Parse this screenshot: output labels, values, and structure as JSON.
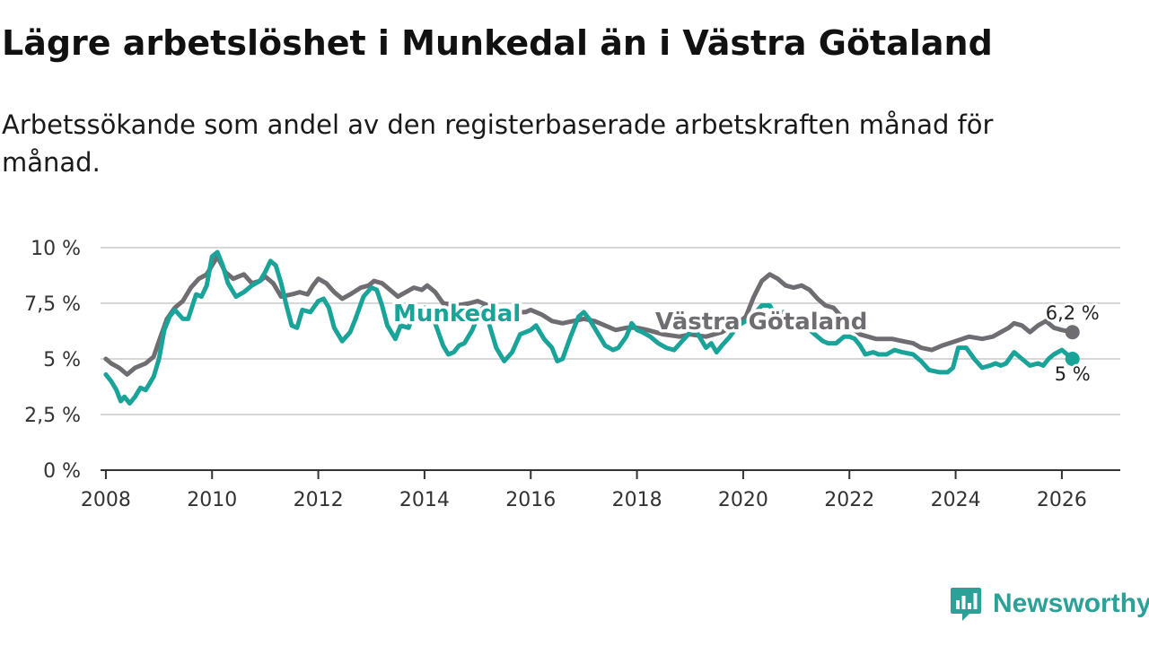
{
  "title": "Lägre arbetslöshet i Munkedal än i Västra Götaland",
  "subtitle": "Arbetssökande som andel av den registerbaserade arbetskraften månad för månad.",
  "brand": {
    "name": "Newsworthy",
    "color": "#2ba198",
    "icon": "newsworthy-logo-icon"
  },
  "chart_data": {
    "type": "line",
    "title": "Lägre arbetslöshet i Munkedal än i Västra Götaland",
    "xlabel": "",
    "ylabel": "",
    "xlim": [
      2007.9,
      2027.1
    ],
    "ylim": [
      0,
      10
    ],
    "grid": true,
    "y_ticks": [
      {
        "value": 0,
        "label": "0 %"
      },
      {
        "value": 2.5,
        "label": "2,5 %"
      },
      {
        "value": 5,
        "label": "5 %"
      },
      {
        "value": 7.5,
        "label": "7,5 %"
      },
      {
        "value": 10,
        "label": "10 %"
      }
    ],
    "x_ticks": [
      {
        "value": 2008,
        "label": "2008"
      },
      {
        "value": 2010,
        "label": "2010"
      },
      {
        "value": 2012,
        "label": "2012"
      },
      {
        "value": 2014,
        "label": "2014"
      },
      {
        "value": 2016,
        "label": "2016"
      },
      {
        "value": 2018,
        "label": "2018"
      },
      {
        "value": 2020,
        "label": "2020"
      },
      {
        "value": 2022,
        "label": "2022"
      },
      {
        "value": 2024,
        "label": "2024"
      },
      {
        "value": 2026,
        "label": "2026"
      }
    ],
    "series": [
      {
        "name": "Västra Götaland",
        "label": "Västra Götaland",
        "color": "#6f6d72",
        "end_label": "6,2 %",
        "points": [
          [
            2008.0,
            5.0
          ],
          [
            2008.1,
            4.8
          ],
          [
            2008.25,
            4.6
          ],
          [
            2008.4,
            4.3
          ],
          [
            2008.55,
            4.6
          ],
          [
            2008.75,
            4.8
          ],
          [
            2008.9,
            5.1
          ],
          [
            2009.0,
            5.8
          ],
          [
            2009.15,
            6.8
          ],
          [
            2009.3,
            7.3
          ],
          [
            2009.45,
            7.6
          ],
          [
            2009.6,
            8.2
          ],
          [
            2009.75,
            8.6
          ],
          [
            2009.9,
            8.8
          ],
          [
            2010.0,
            9.2
          ],
          [
            2010.1,
            9.6
          ],
          [
            2010.25,
            8.9
          ],
          [
            2010.4,
            8.6
          ],
          [
            2010.5,
            8.7
          ],
          [
            2010.6,
            8.8
          ],
          [
            2010.75,
            8.4
          ],
          [
            2010.9,
            8.5
          ],
          [
            2011.0,
            8.7
          ],
          [
            2011.15,
            8.4
          ],
          [
            2011.3,
            7.8
          ],
          [
            2011.5,
            7.9
          ],
          [
            2011.65,
            8.0
          ],
          [
            2011.8,
            7.9
          ],
          [
            2011.9,
            8.3
          ],
          [
            2012.0,
            8.6
          ],
          [
            2012.15,
            8.4
          ],
          [
            2012.3,
            8.0
          ],
          [
            2012.45,
            7.7
          ],
          [
            2012.6,
            7.9
          ],
          [
            2012.8,
            8.2
          ],
          [
            2012.95,
            8.3
          ],
          [
            2013.05,
            8.5
          ],
          [
            2013.2,
            8.4
          ],
          [
            2013.35,
            8.1
          ],
          [
            2013.5,
            7.8
          ],
          [
            2013.65,
            8.0
          ],
          [
            2013.8,
            8.2
          ],
          [
            2013.95,
            8.1
          ],
          [
            2014.05,
            8.3
          ],
          [
            2014.2,
            8.0
          ],
          [
            2014.35,
            7.5
          ],
          [
            2014.6,
            7.4
          ],
          [
            2014.85,
            7.5
          ],
          [
            2015.0,
            7.6
          ],
          [
            2015.2,
            7.4
          ],
          [
            2015.5,
            7.0
          ],
          [
            2015.7,
            7.1
          ],
          [
            2015.9,
            7.1
          ],
          [
            2016.0,
            7.2
          ],
          [
            2016.2,
            7.0
          ],
          [
            2016.4,
            6.7
          ],
          [
            2016.6,
            6.6
          ],
          [
            2016.8,
            6.7
          ],
          [
            2017.0,
            6.8
          ],
          [
            2017.2,
            6.7
          ],
          [
            2017.4,
            6.5
          ],
          [
            2017.6,
            6.3
          ],
          [
            2017.8,
            6.4
          ],
          [
            2018.0,
            6.4
          ],
          [
            2018.2,
            6.3
          ],
          [
            2018.5,
            6.1
          ],
          [
            2018.8,
            6.0
          ],
          [
            2019.0,
            6.1
          ],
          [
            2019.3,
            6.0
          ],
          [
            2019.6,
            6.2
          ],
          [
            2019.9,
            6.6
          ],
          [
            2020.05,
            6.9
          ],
          [
            2020.2,
            7.8
          ],
          [
            2020.35,
            8.5
          ],
          [
            2020.5,
            8.8
          ],
          [
            2020.65,
            8.6
          ],
          [
            2020.8,
            8.3
          ],
          [
            2020.95,
            8.2
          ],
          [
            2021.1,
            8.3
          ],
          [
            2021.25,
            8.1
          ],
          [
            2021.4,
            7.7
          ],
          [
            2021.55,
            7.4
          ],
          [
            2021.7,
            7.3
          ],
          [
            2021.85,
            6.9
          ],
          [
            2022.0,
            6.5
          ],
          [
            2022.2,
            6.1
          ],
          [
            2022.5,
            5.9
          ],
          [
            2022.8,
            5.9
          ],
          [
            2023.0,
            5.8
          ],
          [
            2023.2,
            5.7
          ],
          [
            2023.35,
            5.5
          ],
          [
            2023.55,
            5.4
          ],
          [
            2023.75,
            5.6
          ],
          [
            2024.0,
            5.8
          ],
          [
            2024.25,
            6.0
          ],
          [
            2024.5,
            5.9
          ],
          [
            2024.7,
            6.0
          ],
          [
            2024.85,
            6.2
          ],
          [
            2025.0,
            6.4
          ],
          [
            2025.1,
            6.6
          ],
          [
            2025.25,
            6.5
          ],
          [
            2025.4,
            6.2
          ],
          [
            2025.55,
            6.5
          ],
          [
            2025.7,
            6.7
          ],
          [
            2025.85,
            6.4
          ],
          [
            2026.0,
            6.3
          ],
          [
            2026.2,
            6.2
          ]
        ]
      },
      {
        "name": "Munkedal",
        "label": "Munkedal",
        "color": "#1aa399",
        "end_label": "5 %",
        "points": [
          [
            2008.0,
            4.3
          ],
          [
            2008.1,
            4.0
          ],
          [
            2008.2,
            3.6
          ],
          [
            2008.28,
            3.1
          ],
          [
            2008.35,
            3.3
          ],
          [
            2008.45,
            3.0
          ],
          [
            2008.55,
            3.3
          ],
          [
            2008.65,
            3.7
          ],
          [
            2008.75,
            3.6
          ],
          [
            2008.9,
            4.2
          ],
          [
            2009.0,
            5.0
          ],
          [
            2009.1,
            6.3
          ],
          [
            2009.2,
            6.9
          ],
          [
            2009.3,
            7.2
          ],
          [
            2009.45,
            6.8
          ],
          [
            2009.55,
            6.8
          ],
          [
            2009.7,
            7.9
          ],
          [
            2009.8,
            7.8
          ],
          [
            2009.9,
            8.3
          ],
          [
            2010.0,
            9.6
          ],
          [
            2010.1,
            9.8
          ],
          [
            2010.2,
            9.2
          ],
          [
            2010.3,
            8.4
          ],
          [
            2010.45,
            7.8
          ],
          [
            2010.6,
            8.0
          ],
          [
            2010.75,
            8.3
          ],
          [
            2010.9,
            8.5
          ],
          [
            2011.0,
            8.9
          ],
          [
            2011.1,
            9.4
          ],
          [
            2011.2,
            9.2
          ],
          [
            2011.3,
            8.4
          ],
          [
            2011.4,
            7.4
          ],
          [
            2011.5,
            6.5
          ],
          [
            2011.6,
            6.4
          ],
          [
            2011.7,
            7.2
          ],
          [
            2011.85,
            7.1
          ],
          [
            2012.0,
            7.6
          ],
          [
            2012.1,
            7.7
          ],
          [
            2012.2,
            7.3
          ],
          [
            2012.3,
            6.4
          ],
          [
            2012.45,
            5.8
          ],
          [
            2012.6,
            6.2
          ],
          [
            2012.7,
            6.8
          ],
          [
            2012.85,
            7.8
          ],
          [
            2013.0,
            8.2
          ],
          [
            2013.1,
            8.1
          ],
          [
            2013.2,
            7.4
          ],
          [
            2013.3,
            6.5
          ],
          [
            2013.45,
            5.9
          ],
          [
            2013.55,
            6.5
          ],
          [
            2013.7,
            6.4
          ],
          [
            2013.8,
            7.1
          ],
          [
            2014.0,
            7.3
          ],
          [
            2014.1,
            7.3
          ],
          [
            2014.2,
            6.6
          ],
          [
            2014.35,
            5.6
          ],
          [
            2014.45,
            5.2
          ],
          [
            2014.55,
            5.3
          ],
          [
            2014.65,
            5.6
          ],
          [
            2014.75,
            5.7
          ],
          [
            2014.9,
            6.3
          ],
          [
            2015.0,
            6.9
          ],
          [
            2015.1,
            7.3
          ],
          [
            2015.2,
            6.7
          ],
          [
            2015.35,
            5.5
          ],
          [
            2015.5,
            4.9
          ],
          [
            2015.65,
            5.3
          ],
          [
            2015.8,
            6.1
          ],
          [
            2016.0,
            6.3
          ],
          [
            2016.1,
            6.5
          ],
          [
            2016.25,
            5.9
          ],
          [
            2016.4,
            5.5
          ],
          [
            2016.5,
            4.9
          ],
          [
            2016.6,
            5.0
          ],
          [
            2016.75,
            6.0
          ],
          [
            2016.9,
            6.9
          ],
          [
            2017.0,
            7.1
          ],
          [
            2017.1,
            6.8
          ],
          [
            2017.25,
            6.2
          ],
          [
            2017.4,
            5.6
          ],
          [
            2017.55,
            5.4
          ],
          [
            2017.65,
            5.5
          ],
          [
            2017.8,
            6.0
          ],
          [
            2017.9,
            6.6
          ],
          [
            2018.0,
            6.3
          ],
          [
            2018.1,
            6.2
          ],
          [
            2018.25,
            6.0
          ],
          [
            2018.4,
            5.7
          ],
          [
            2018.55,
            5.5
          ],
          [
            2018.7,
            5.4
          ],
          [
            2018.85,
            5.8
          ],
          [
            2019.0,
            6.2
          ],
          [
            2019.1,
            6.3
          ],
          [
            2019.2,
            5.9
          ],
          [
            2019.3,
            5.5
          ],
          [
            2019.4,
            5.7
          ],
          [
            2019.5,
            5.3
          ],
          [
            2019.6,
            5.6
          ],
          [
            2019.75,
            6.0
          ],
          [
            2019.9,
            6.5
          ],
          [
            2020.05,
            6.7
          ],
          [
            2020.2,
            7.0
          ],
          [
            2020.35,
            7.4
          ],
          [
            2020.5,
            7.4
          ],
          [
            2020.6,
            7.0
          ],
          [
            2020.75,
            7.1
          ],
          [
            2020.9,
            6.9
          ],
          [
            2021.0,
            6.6
          ],
          [
            2021.15,
            6.6
          ],
          [
            2021.3,
            6.2
          ],
          [
            2021.5,
            5.8
          ],
          [
            2021.6,
            5.7
          ],
          [
            2021.75,
            5.7
          ],
          [
            2021.9,
            6.0
          ],
          [
            2022.0,
            6.0
          ],
          [
            2022.1,
            5.9
          ],
          [
            2022.2,
            5.6
          ],
          [
            2022.3,
            5.2
          ],
          [
            2022.45,
            5.3
          ],
          [
            2022.55,
            5.2
          ],
          [
            2022.7,
            5.2
          ],
          [
            2022.85,
            5.4
          ],
          [
            2023.0,
            5.3
          ],
          [
            2023.2,
            5.2
          ],
          [
            2023.35,
            4.9
          ],
          [
            2023.5,
            4.5
          ],
          [
            2023.7,
            4.4
          ],
          [
            2023.85,
            4.4
          ],
          [
            2023.95,
            4.6
          ],
          [
            2024.05,
            5.5
          ],
          [
            2024.2,
            5.5
          ],
          [
            2024.35,
            5.0
          ],
          [
            2024.5,
            4.6
          ],
          [
            2024.65,
            4.7
          ],
          [
            2024.75,
            4.8
          ],
          [
            2024.85,
            4.7
          ],
          [
            2024.95,
            4.8
          ],
          [
            2025.1,
            5.3
          ],
          [
            2025.25,
            5.0
          ],
          [
            2025.4,
            4.7
          ],
          [
            2025.55,
            4.8
          ],
          [
            2025.65,
            4.7
          ],
          [
            2025.75,
            5.0
          ],
          [
            2025.85,
            5.2
          ],
          [
            2026.0,
            5.4
          ],
          [
            2026.1,
            5.2
          ],
          [
            2026.2,
            5.0
          ]
        ]
      }
    ]
  }
}
